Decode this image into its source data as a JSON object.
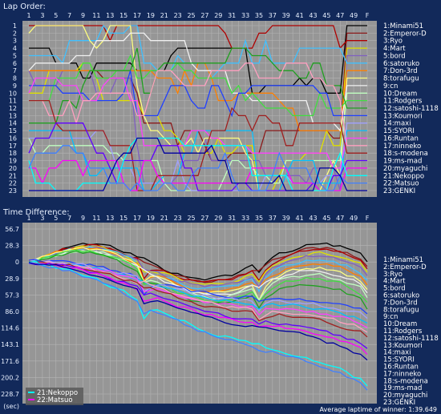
{
  "chart_data": [
    {
      "type": "line",
      "title": "Lap Order:",
      "lap_ticks": [
        "1",
        "3",
        "5",
        "7",
        "9",
        "11",
        "13",
        "15",
        "17",
        "19",
        "21",
        "23",
        "25",
        "27",
        "29",
        "31",
        "33",
        "35",
        "37",
        "39",
        "41",
        "43",
        "45",
        "47",
        "49",
        "F"
      ],
      "y_ticks": [
        "1",
        "2",
        "3",
        "4",
        "5",
        "6",
        "7",
        "8",
        "9",
        "10",
        "11",
        "12",
        "13",
        "14",
        "15",
        "16",
        "17",
        "18",
        "19",
        "20",
        "21",
        "22",
        "23"
      ],
      "ylim": [
        1,
        23
      ],
      "laps_total": 51,
      "grid": true,
      "final_order": [
        "1:Minami51",
        "2:Emperor-D",
        "3:Ryo",
        "4:Mart",
        "5:bord",
        "6:satoruko",
        "7:Don-3rd",
        "8:torafugu",
        "9:cn",
        "10:Dream",
        "11:Rodgers",
        "12:satoshi-1118",
        "13:Koumori",
        "14:maxi",
        "15:SYORI",
        "16:Runtan",
        "17:ninneko",
        "18:s-modena",
        "19:ms-mad",
        "20:myaguchi",
        "21:Nekoppo",
        "22:Matsuo",
        "23:GENKI"
      ]
    },
    {
      "type": "line",
      "title": "Time Difference:",
      "lap_ticks": [
        "1",
        "3",
        "5",
        "7",
        "9",
        "11",
        "13",
        "15",
        "17",
        "19",
        "21",
        "23",
        "25",
        "27",
        "29",
        "31",
        "33",
        "35",
        "37",
        "39",
        "41",
        "43",
        "45",
        "47",
        "49",
        "F"
      ],
      "y_ticks": [
        "56.7",
        "28.3",
        "0",
        "28.9",
        "57.3",
        "86.0",
        "114.6",
        "143.1",
        "171.6",
        "200.2",
        "228.7",
        "(sec)"
      ],
      "ylim_sec": [
        -56.7,
        228.7
      ],
      "legend": [
        "21:Nekoppo",
        "22:Matsuo"
      ],
      "grid": true,
      "final_labels": [
        "1:Minami51",
        "2:Emperor-D",
        "3:Ryo",
        "4:Mart",
        "5:bord",
        "6:satoruko",
        "7:Don-3rd",
        "8:torafugu",
        "9:cn",
        "10:Dream",
        "11:Rodgers",
        "12:satoshi-1118",
        "13:Koumori",
        "14:maxi",
        "15:SYORI",
        "16:Runtan",
        "17:ninneko",
        "18:s-modena",
        "19:ms-mad",
        "20:myaguchi",
        "23:GENKI"
      ],
      "footer": "Average laptime of winner: 1:39.649"
    }
  ],
  "colors": {
    "background": "#12295a",
    "plot_bg": "#969696",
    "grid": "#b4b4b4",
    "series": [
      "#000000",
      "#8b1a1a",
      "#b00000",
      "#e0e000",
      "#8060c0",
      "#40c0ff",
      "#ff8000",
      "#ffff80",
      "#f0f0f0",
      "#c0ffc0",
      "#40e040",
      "#20a020",
      "#2040ff",
      "#a0a0ff",
      "#00c0ff",
      "#ff40ff",
      "#ffa0c0",
      "#a02020",
      "#6000ff",
      "#ff00ff",
      "#00ffff",
      "#4080ff",
      "#0000a0"
    ]
  }
}
